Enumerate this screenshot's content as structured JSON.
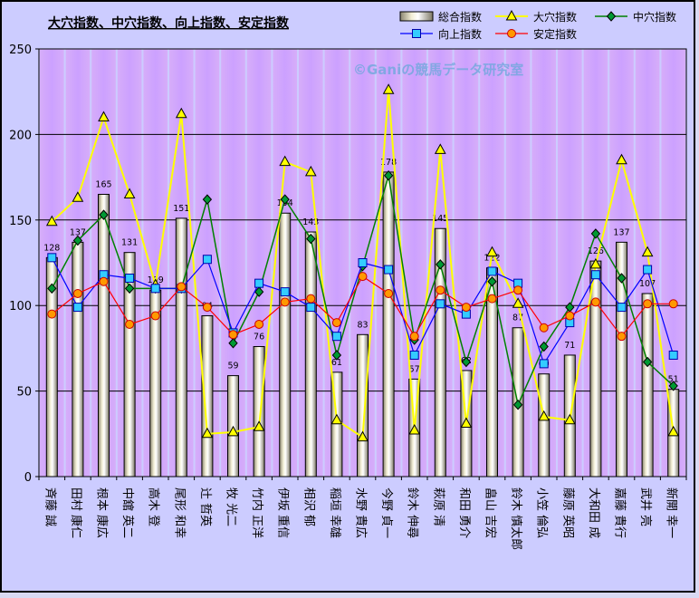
{
  "chart_data": {
    "type": "bar",
    "title": "大穴指数、中穴指数、向上指数、安定指数",
    "watermark": "©Ganiの競馬データ研究室",
    "ylim": [
      0,
      250
    ],
    "yticks": [
      0,
      50,
      100,
      150,
      200,
      250
    ],
    "categories": [
      "斉藤 誠",
      "田村 康仁",
      "根本 康広",
      "中舘 英二",
      "高木 登",
      "尾形 和幸",
      "辻 哲英",
      "牧 光二",
      "竹内 正洋",
      "伊坂 重信",
      "相沢 郁",
      "稲垣 幸雄",
      "水野 貴広",
      "今野 貞一",
      "鈴木 伸尋",
      "萩原 清",
      "和田 勇介",
      "畠山 吉宏",
      "鈴木 慎太郎",
      "小笠 倫弘",
      "藤原 英昭",
      "大和田 成",
      "嘉藤 貴行",
      "武井 亮",
      "新開 幸一"
    ],
    "series": [
      {
        "name": "総合指数",
        "kind": "bar",
        "values": [
          128,
          137,
          165,
          131,
          109,
          151,
          94,
          59,
          76,
          154,
          143,
          61,
          83,
          178,
          57,
          145,
          62,
          122,
          87,
          60,
          71,
          126,
          137,
          107,
          51
        ]
      },
      {
        "name": "大穴指数",
        "kind": "line",
        "values": [
          149,
          163,
          210,
          165,
          112,
          212,
          25,
          26,
          29,
          184,
          178,
          33,
          23,
          226,
          27,
          191,
          31,
          131,
          101,
          35,
          33,
          124,
          185,
          131,
          26
        ]
      },
      {
        "name": "中穴指数",
        "kind": "line",
        "values": [
          110,
          138,
          153,
          110,
          110,
          110,
          162,
          78,
          108,
          162,
          139,
          71,
          123,
          176,
          80,
          124,
          67,
          114,
          42,
          76,
          99,
          142,
          116,
          67,
          53
        ]
      },
      {
        "name": "向上指数",
        "kind": "line",
        "values": [
          128,
          99,
          118,
          116,
          110,
          110,
          127,
          84,
          113,
          108,
          99,
          82,
          125,
          121,
          71,
          101,
          95,
          120,
          113,
          66,
          90,
          118,
          99,
          121,
          71
        ]
      },
      {
        "name": "安定指数",
        "kind": "line",
        "values": [
          95,
          107,
          114,
          89,
          94,
          111,
          99,
          83,
          89,
          102,
          104,
          90,
          117,
          107,
          82,
          109,
          99,
          104,
          109,
          87,
          94,
          102,
          82,
          101,
          101
        ]
      }
    ],
    "colors": {
      "bar_fill": "#ddd8b0",
      "bar_stroke": "#000000",
      "大穴指数": "#ffff00",
      "中穴指数": "#008000",
      "向上指数": "#0000ff",
      "安定指数": "#ff0000",
      "plot_bg": "#ccccff",
      "grid_band": "#c9a8f0"
    },
    "grid": true,
    "legend_position": "top-right"
  }
}
